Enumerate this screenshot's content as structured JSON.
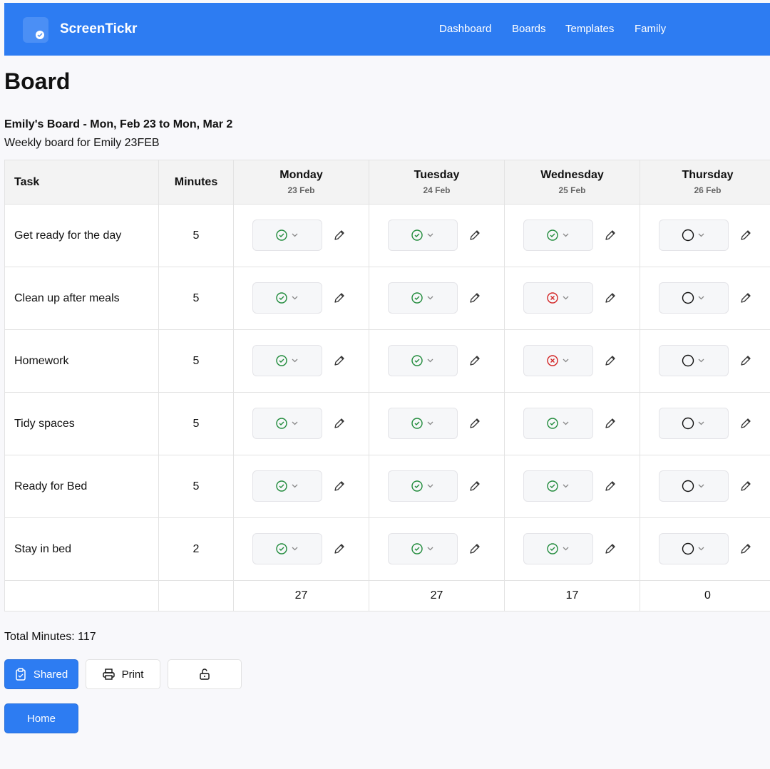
{
  "header": {
    "brand": "ScreenTickr",
    "nav": [
      "Dashboard",
      "Boards",
      "Templates",
      "Family"
    ]
  },
  "page": {
    "title": "Board",
    "board_title": "Emily's Board - Mon, Feb 23 to Mon, Mar 2",
    "description": "Weekly board for Emily 23FEB"
  },
  "table": {
    "columns": [
      "Task",
      "Minutes"
    ],
    "days": [
      {
        "name": "Monday",
        "date": "23 Feb"
      },
      {
        "name": "Tuesday",
        "date": "24 Feb"
      },
      {
        "name": "Wednesday",
        "date": "25 Feb"
      },
      {
        "name": "Thursday",
        "date": "26 Feb"
      }
    ],
    "rows": [
      {
        "task": "Get ready for the day",
        "minutes": 5,
        "status": [
          "done",
          "done",
          "done",
          "empty"
        ]
      },
      {
        "task": "Clean up after meals",
        "minutes": 5,
        "status": [
          "done",
          "done",
          "missed",
          "empty"
        ]
      },
      {
        "task": "Homework",
        "minutes": 5,
        "status": [
          "done",
          "done",
          "missed",
          "empty"
        ]
      },
      {
        "task": "Tidy spaces",
        "minutes": 5,
        "status": [
          "done",
          "done",
          "done",
          "empty"
        ]
      },
      {
        "task": "Ready for Bed",
        "minutes": 5,
        "status": [
          "done",
          "done",
          "done",
          "empty"
        ]
      },
      {
        "task": "Stay in bed",
        "minutes": 2,
        "status": [
          "done",
          "done",
          "done",
          "empty"
        ]
      }
    ],
    "totals": [
      27,
      27,
      17,
      0
    ]
  },
  "summary": {
    "label": "Total Minutes:",
    "value": 117
  },
  "buttons": {
    "shared": "Shared",
    "print": "Print",
    "home": "Home"
  }
}
